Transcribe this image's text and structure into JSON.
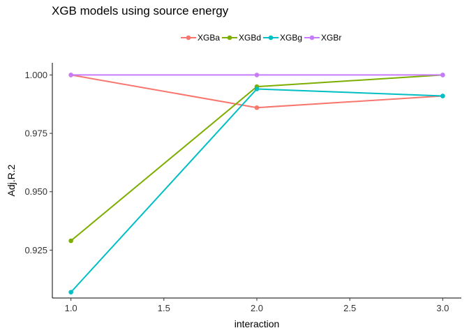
{
  "chart_data": {
    "type": "line",
    "title": "XGB models using source energy",
    "xlabel": "interaction",
    "ylabel": "Adj.R.2",
    "x": [
      1,
      2,
      3
    ],
    "xlim": [
      0.9,
      3.1
    ],
    "ylim": [
      0.9045,
      1.0052
    ],
    "xticks": [
      "1.0",
      "1.5",
      "2.0",
      "2.5",
      "3.0"
    ],
    "yticks": [
      "0.925",
      "0.950",
      "0.975",
      "1.000"
    ],
    "grid": false,
    "legend_position": "top",
    "series": [
      {
        "name": "XGBa",
        "color": "#F8766D",
        "values": [
          1.0,
          0.986,
          0.991
        ]
      },
      {
        "name": "XGBd",
        "color": "#7CAE00",
        "values": [
          0.929,
          0.995,
          1.0
        ]
      },
      {
        "name": "XGBg",
        "color": "#00BFC4",
        "values": [
          0.907,
          0.994,
          0.991
        ]
      },
      {
        "name": "XGBr",
        "color": "#C77CFF",
        "values": [
          1.0,
          1.0,
          1.0
        ]
      }
    ]
  }
}
